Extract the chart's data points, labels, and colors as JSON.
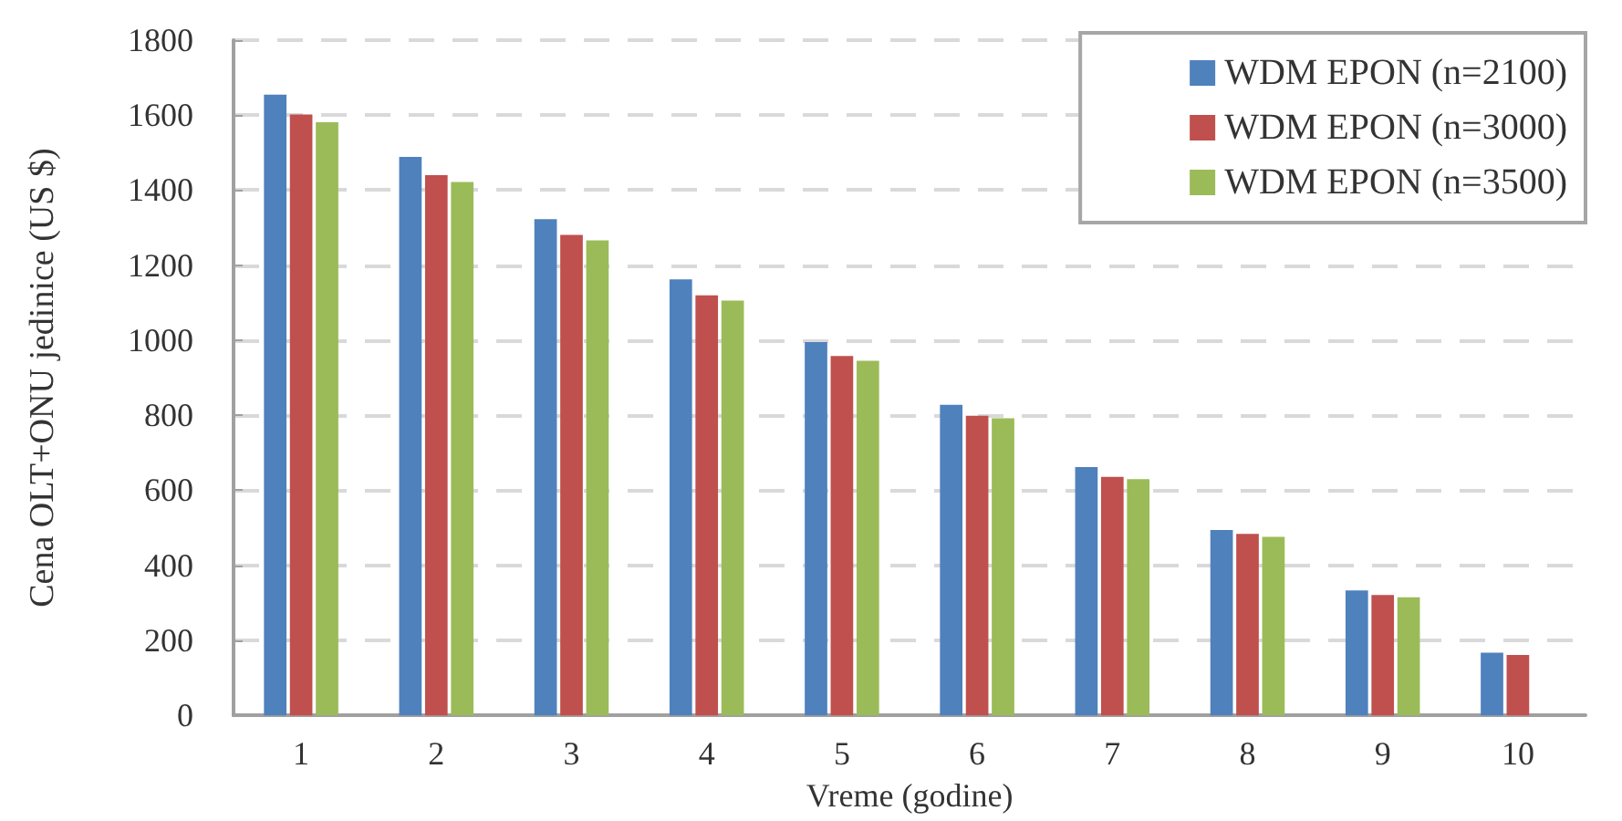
{
  "chart_data": {
    "type": "bar",
    "xlabel": "Vreme (godine)",
    "ylabel": "Cena OLT+ONU jedinice (US $)",
    "categories": [
      "1",
      "2",
      "3",
      "4",
      "5",
      "6",
      "7",
      "8",
      "9",
      "10"
    ],
    "series": [
      {
        "name": "WDM EPON (n=2100)",
        "color": "#4f81bd",
        "values": [
          1655,
          1489,
          1323,
          1162,
          995,
          828,
          662,
          494,
          333,
          167
        ]
      },
      {
        "name": "WDM EPON (n=3000)",
        "color": "#c0504d",
        "values": [
          1602,
          1440,
          1281,
          1120,
          958,
          799,
          636,
          484,
          321,
          161
        ]
      },
      {
        "name": "WDM EPON (n=3500)",
        "color": "#9bbb59",
        "values": [
          1581,
          1422,
          1266,
          1106,
          945,
          792,
          630,
          476,
          315,
          null
        ]
      }
    ],
    "ylim": [
      0,
      1800
    ],
    "yticks": [
      0,
      200,
      400,
      600,
      800,
      1000,
      1200,
      1400,
      1600,
      1800
    ],
    "grid": "y",
    "legend": "top right"
  }
}
